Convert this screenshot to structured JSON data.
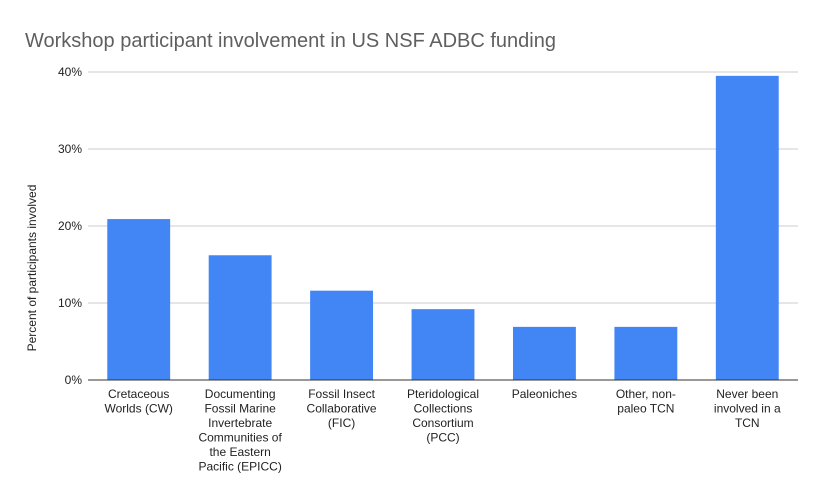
{
  "chart_data": {
    "type": "bar",
    "title": "Workshop participant involvement in US NSF ADBC funding",
    "y_label": "Percent of participants involved",
    "categories": [
      "Cretaceous Worlds (CW)",
      "Documenting Fossil Marine Invertebrate Communities of the Eastern Pacific (EPICC)",
      "Fossil Insect Collaborative (FIC)",
      "Pteridological Collections Consortium (PCC)",
      "Paleoniches",
      "Other, non-paleo TCN",
      "Never been involved in a TCN"
    ],
    "values": [
      20.9,
      16.2,
      11.6,
      9.2,
      6.9,
      6.9,
      39.5
    ],
    "color": "#4285f4",
    "ylim": [
      0,
      40
    ],
    "yticks": [
      {
        "value": 0,
        "label": "0%"
      },
      {
        "value": 10,
        "label": "10%"
      },
      {
        "value": 20,
        "label": "20%"
      },
      {
        "value": 30,
        "label": "30%"
      },
      {
        "value": 40,
        "label": "40%"
      }
    ],
    "grid": true
  }
}
